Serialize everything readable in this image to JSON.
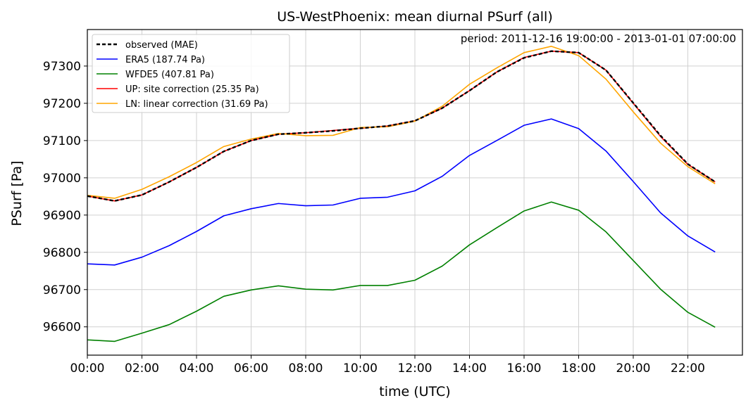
{
  "chart_data": {
    "type": "line",
    "title": "US-WestPhoenix: mean diurnal PSurf (all)",
    "annotation": "period: 2011-12-16 19:00:00 - 2013-01-01 07:00:00",
    "xlabel": "time (UTC)",
    "ylabel": "PSurf [Pa]",
    "xlim": [
      0,
      24
    ],
    "ylim": [
      96524,
      97398
    ],
    "x_ticks": [
      0,
      2,
      4,
      6,
      8,
      10,
      12,
      14,
      16,
      18,
      20,
      22
    ],
    "x_tick_labels": [
      "00:00",
      "02:00",
      "04:00",
      "06:00",
      "08:00",
      "10:00",
      "12:00",
      "14:00",
      "16:00",
      "18:00",
      "20:00",
      "22:00"
    ],
    "y_ticks": [
      96600,
      96700,
      96800,
      96900,
      97000,
      97100,
      97200,
      97300
    ],
    "y_tick_labels": [
      "96600",
      "96700",
      "96800",
      "96900",
      "97000",
      "97100",
      "97200",
      "97300"
    ],
    "grid": true,
    "legend_position": "top-left",
    "x": [
      0,
      1,
      2,
      3,
      4,
      5,
      6,
      7,
      8,
      9,
      10,
      11,
      12,
      13,
      14,
      15,
      16,
      17,
      18,
      19,
      20,
      21,
      22,
      23
    ],
    "series": [
      {
        "name": "ERA5 (187.74 Pa)",
        "color": "#0000ff",
        "style": "solid",
        "values": [
          96769,
          96766,
          96787,
          96818,
          96856,
          96898,
          96917,
          96931,
          96925,
          96927,
          96945,
          96948,
          96965,
          97004,
          97060,
          97100,
          97141,
          97158,
          97132,
          97072,
          96990,
          96906,
          96844,
          96801
        ]
      },
      {
        "name": "WFDE5 (407.81 Pa)",
        "color": "#008000",
        "style": "solid",
        "values": [
          96565,
          96561,
          96583,
          96606,
          96642,
          96682,
          96699,
          96710,
          96701,
          96699,
          96711,
          96711,
          96725,
          96763,
          96820,
          96866,
          96911,
          96935,
          96913,
          96855,
          96778,
          96701,
          96639,
          96599
        ]
      },
      {
        "name": "UP: site correction (25.35 Pa)",
        "color": "#ff0000",
        "style": "solid",
        "values": [
          96951,
          96938,
          96954,
          96989,
          97028,
          97071,
          97100,
          97117,
          97121,
          97127,
          97133,
          97139,
          97153,
          97187,
          97234,
          97284,
          97323,
          97340,
          97336,
          97289,
          97200,
          97111,
          97036,
          96989
        ]
      },
      {
        "name": "LN: linear correction (31.69 Pa)",
        "color": "#ffa500",
        "style": "solid",
        "values": [
          96953,
          96945,
          96969,
          97003,
          97041,
          97084,
          97104,
          97119,
          97113,
          97114,
          97135,
          97137,
          97152,
          97192,
          97251,
          97295,
          97336,
          97353,
          97328,
          97265,
          97177,
          97093,
          97030,
          96984
        ]
      },
      {
        "name": "observed (MAE)",
        "color": "#000000",
        "style": "dashed",
        "values": [
          96951,
          96938,
          96954,
          96989,
          97028,
          97071,
          97100,
          97117,
          97121,
          97126,
          97133,
          97139,
          97153,
          97187,
          97234,
          97284,
          97322,
          97340,
          97336,
          97289,
          97201,
          97113,
          97037,
          96989
        ]
      }
    ],
    "legend_order": [
      "observed (MAE)",
      "ERA5 (187.74 Pa)",
      "WFDE5 (407.81 Pa)",
      "UP: site correction (25.35 Pa)",
      "LN: linear correction (31.69 Pa)"
    ]
  }
}
